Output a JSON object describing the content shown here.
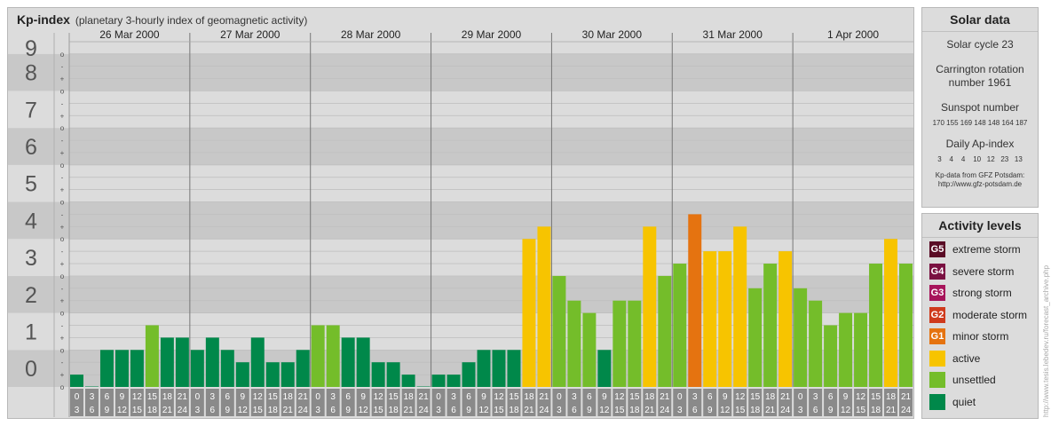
{
  "header": {
    "title": "Kp-index",
    "subtitle": "(planetary 3-hourly index of geomagnetic activity)"
  },
  "chart_data": {
    "type": "bar",
    "title": "Kp-index",
    "subtitle": "(planetary 3-hourly index of geomagnetic activity)",
    "y_tick_labels": [
      "0",
      "1",
      "2",
      "3",
      "4",
      "5",
      "6",
      "7",
      "8",
      "9"
    ],
    "y_minor_labels": [
      "-",
      "o",
      "+"
    ],
    "ylim": [
      0,
      9.33
    ],
    "days": [
      "26 Mar 2000",
      "27 Mar 2000",
      "28 Mar 2000",
      "29 Mar 2000",
      "30 Mar 2000",
      "31 Mar 2000",
      "1 Apr 2000"
    ],
    "interval_start_labels": [
      "0",
      "3",
      "6",
      "9",
      "12",
      "15",
      "18",
      "21"
    ],
    "interval_end_labels": [
      "3",
      "6",
      "9",
      "12",
      "15",
      "18",
      "21",
      "24"
    ],
    "values": [
      [
        0.333,
        0.0,
        1.0,
        1.0,
        1.0,
        1.667,
        1.333,
        1.333
      ],
      [
        1.0,
        1.333,
        1.0,
        0.667,
        1.333,
        0.667,
        0.667,
        1.0
      ],
      [
        1.667,
        1.667,
        1.333,
        1.333,
        0.667,
        0.667,
        0.333,
        0.0
      ],
      [
        0.333,
        0.333,
        0.667,
        1.0,
        1.0,
        1.0,
        4.0,
        4.333
      ],
      [
        3.0,
        2.333,
        2.0,
        1.0,
        2.333,
        2.333,
        4.333,
        3.0
      ],
      [
        3.333,
        4.667,
        3.667,
        3.667,
        4.333,
        2.667,
        3.333,
        3.667
      ],
      [
        2.667,
        2.333,
        1.667,
        2.0,
        2.0,
        3.333,
        4.0,
        3.333
      ]
    ],
    "category": [
      [
        "quiet",
        "quiet",
        "quiet",
        "quiet",
        "quiet",
        "unsettled",
        "quiet",
        "quiet"
      ],
      [
        "quiet",
        "quiet",
        "quiet",
        "quiet",
        "quiet",
        "quiet",
        "quiet",
        "quiet"
      ],
      [
        "unsettled",
        "unsettled",
        "quiet",
        "quiet",
        "quiet",
        "quiet",
        "quiet",
        "quiet"
      ],
      [
        "quiet",
        "quiet",
        "quiet",
        "quiet",
        "quiet",
        "quiet",
        "active",
        "active"
      ],
      [
        "unsettled",
        "unsettled",
        "unsettled",
        "quiet",
        "unsettled",
        "unsettled",
        "active",
        "unsettled"
      ],
      [
        "unsettled",
        "minor-storm",
        "active",
        "active",
        "active",
        "unsettled",
        "unsettled",
        "active"
      ],
      [
        "unsettled",
        "unsettled",
        "unsettled",
        "unsettled",
        "unsettled",
        "unsettled",
        "active",
        "unsettled"
      ]
    ],
    "category_colors": {
      "quiet": "#00884a",
      "unsettled": "#74bd2a",
      "active": "#f7c400",
      "minor-storm": "#e57310"
    },
    "grid": true
  },
  "solar_data": {
    "heading": "Solar data",
    "cycle": "Solar cycle 23",
    "carrington_line1": "Carrington rotation",
    "carrington_line2": "number 1961",
    "sunspot_heading": "Sunspot number",
    "sunspot_values": "170 155 169 148 148 164 187",
    "ap_heading": "Daily Ap-index",
    "ap_values": "3    4    4    10   12   23   13",
    "source_line1": "Kp-data from GFZ Potsdam:",
    "source_line2": "http://www.gfz-potsdam.de"
  },
  "activity_levels": {
    "heading": "Activity levels",
    "items": [
      {
        "code": "G5",
        "label": "extreme storm",
        "color": "#5a0b25"
      },
      {
        "code": "G4",
        "label": "severe storm",
        "color": "#7a1041"
      },
      {
        "code": "G3",
        "label": "strong storm",
        "color": "#a7145a"
      },
      {
        "code": "G2",
        "label": "moderate storm",
        "color": "#cf3a1c"
      },
      {
        "code": "G1",
        "label": "minor storm",
        "color": "#e57310"
      },
      {
        "code": "",
        "label": "active",
        "color": "#f7c400"
      },
      {
        "code": "",
        "label": "unsettled",
        "color": "#74bd2a"
      },
      {
        "code": "",
        "label": "quiet",
        "color": "#00884a"
      }
    ]
  },
  "watermark": "http://www.tesis.lebedev.ru/forecast_archive.php"
}
